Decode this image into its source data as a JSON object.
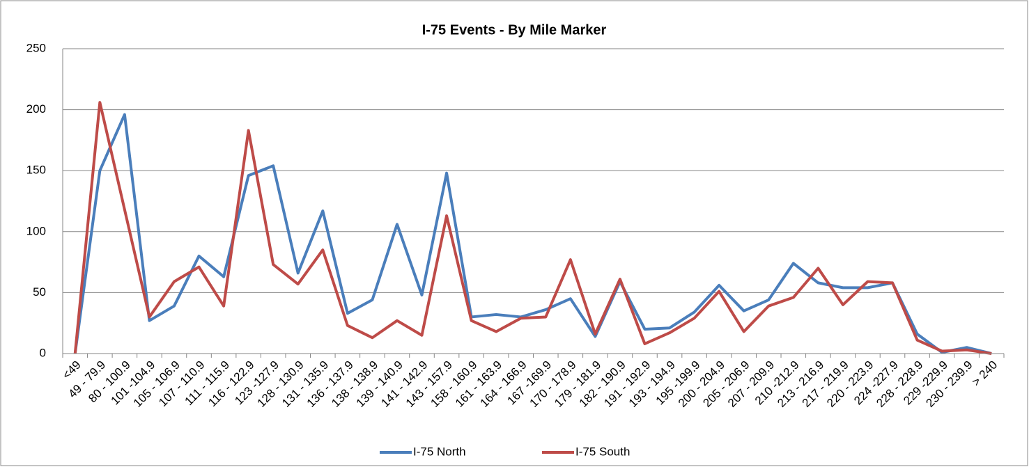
{
  "chart_data": {
    "type": "line",
    "title": "I-75 Events - By Mile Marker",
    "categories": [
      "<49",
      "49 - 79.9",
      "80 - 100.9",
      "101 -104.9",
      "105 - 106.9",
      "107 - 110.9",
      "111 - 115.9",
      "116 - 122.9",
      "123 -127.9",
      "128 - 130.9",
      "131 - 135.9",
      "136 - 137.9",
      "138 - 138.9",
      "139 - 140.9",
      "141 - 142.9",
      "143 - 157.9",
      "158 - 160.9",
      "161 - 163.9",
      "164 - 166.9",
      "167 -169.9",
      "170 - 178.9",
      "179 - 181.9",
      "182 - 190.9",
      "191 - 192.9",
      "193 - 194.9",
      "195 -199.9",
      "200 - 204.9",
      "205 - 206.9",
      "207 - 209.9",
      "210 -212.9",
      "213 - 216.9",
      "217 - 219.9",
      "220 - 223.9",
      "224 -227.9",
      "228 - 228.9",
      "229 -229.9",
      "230 - 239.9",
      "> 240"
    ],
    "series": [
      {
        "name": "I-75 North",
        "color": "#4a7ebb",
        "values": [
          0,
          150,
          196,
          27,
          39,
          80,
          63,
          146,
          154,
          66,
          117,
          33,
          44,
          106,
          48,
          148,
          30,
          32,
          30,
          36,
          45,
          14,
          59,
          20,
          21,
          34,
          56,
          35,
          44,
          74,
          58,
          54,
          54,
          58,
          16,
          1,
          5,
          0
        ]
      },
      {
        "name": "I-75 South",
        "color": "#be4b48",
        "values": [
          0,
          206,
          118,
          30,
          59,
          71,
          39,
          183,
          73,
          57,
          85,
          23,
          13,
          27,
          15,
          113,
          27,
          18,
          29,
          30,
          77,
          16,
          61,
          8,
          17,
          29,
          51,
          18,
          39,
          46,
          70,
          40,
          59,
          58,
          11,
          2,
          3,
          0
        ]
      }
    ],
    "ylim": [
      0,
      250
    ],
    "yticks": [
      0,
      50,
      100,
      150,
      200,
      250
    ],
    "grid": true,
    "legend": "bottom"
  }
}
